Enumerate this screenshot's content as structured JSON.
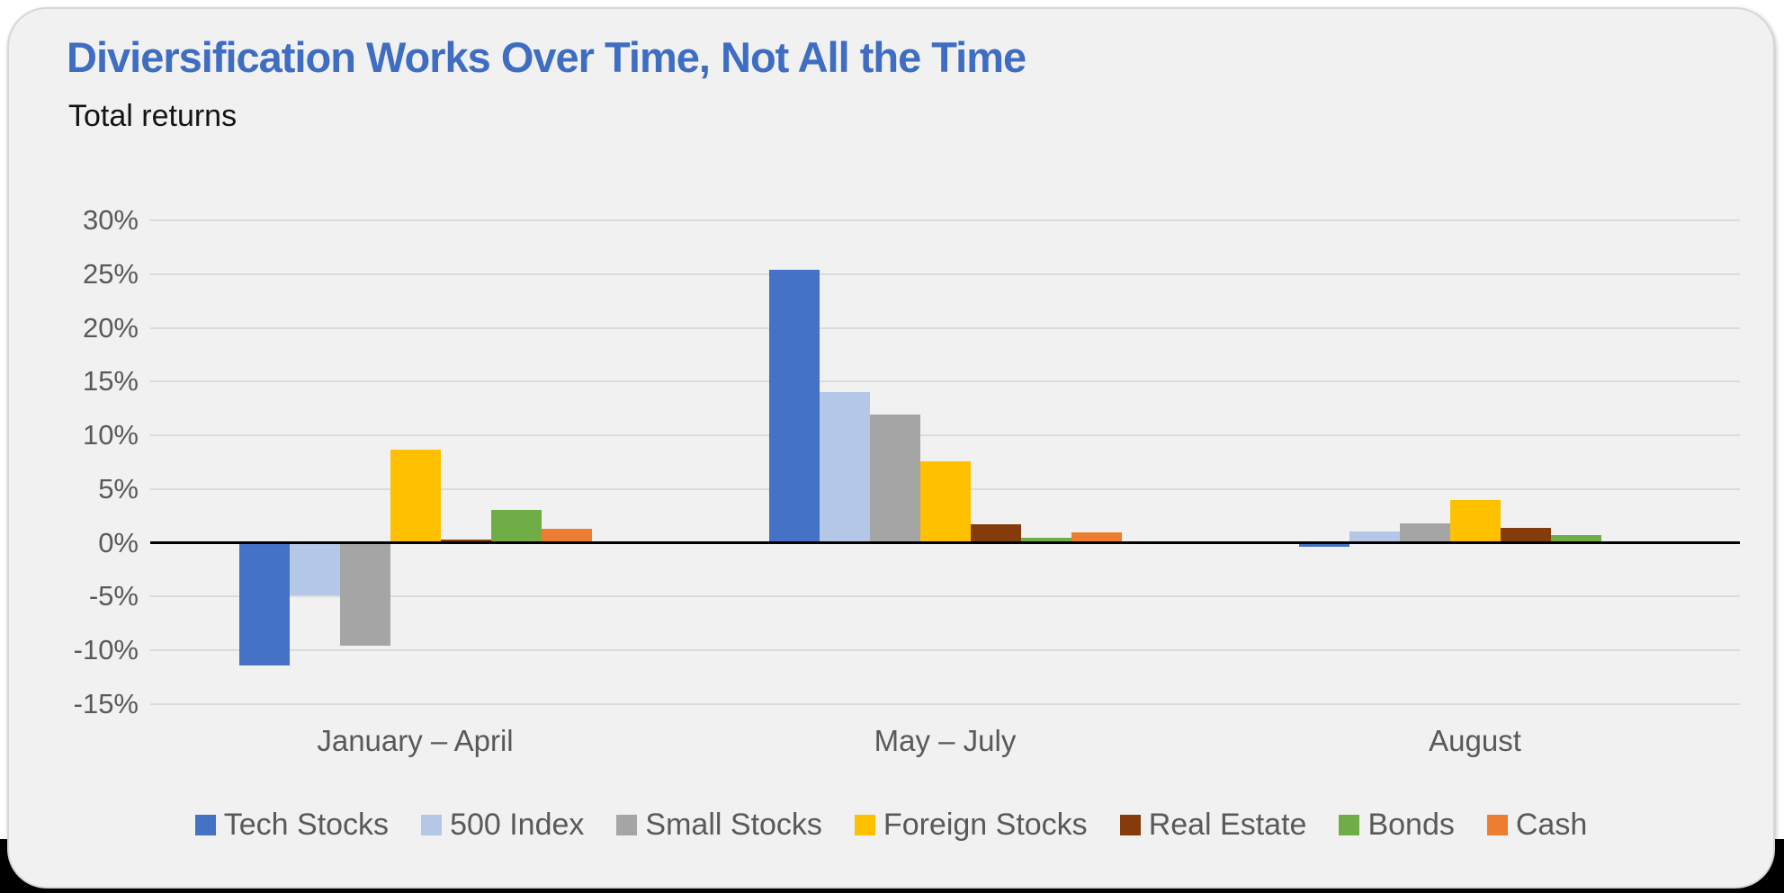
{
  "chart_data": {
    "type": "bar",
    "title": "Diviersification Works Over Time, Not All the Time",
    "subtitle": "Total returns",
    "categories": [
      "January – April",
      "May – July",
      "August"
    ],
    "series": [
      {
        "name": "Tech Stocks",
        "color": "#4472C4",
        "values": [
          -11.4,
          25.4,
          -0.4
        ]
      },
      {
        "name": "500 Index",
        "color": "#B4C7E7",
        "values": [
          -4.9,
          14.0,
          1.1
        ]
      },
      {
        "name": "Small Stocks",
        "color": "#A5A5A5",
        "values": [
          -9.6,
          11.9,
          1.8
        ]
      },
      {
        "name": "Foreign Stocks",
        "color": "#FFC000",
        "values": [
          8.7,
          7.6,
          4.0
        ]
      },
      {
        "name": "Real Estate",
        "color": "#843C0C",
        "values": [
          0.3,
          1.7,
          1.4
        ]
      },
      {
        "name": "Bonds",
        "color": "#70AD47",
        "values": [
          3.1,
          0.5,
          0.7
        ]
      },
      {
        "name": "Cash",
        "color": "#ED7D31",
        "values": [
          1.3,
          1.0,
          0.1
        ]
      }
    ],
    "ylim": [
      -15,
      30
    ],
    "ytick_step": 5,
    "ytick_labels": [
      "30%",
      "25%",
      "20%",
      "15%",
      "10%",
      "5%",
      "0%",
      "-5%",
      "-10%",
      "-15%"
    ],
    "grid": true,
    "legend_position": "bottom",
    "colors": {
      "title_text": "#3E6DC2",
      "axis_text": "#595959",
      "gridline": "#DBDBDB",
      "zero_line": "#000000",
      "card_background": "#F1F1F2",
      "page_bottom_strip": "#000000"
    }
  }
}
